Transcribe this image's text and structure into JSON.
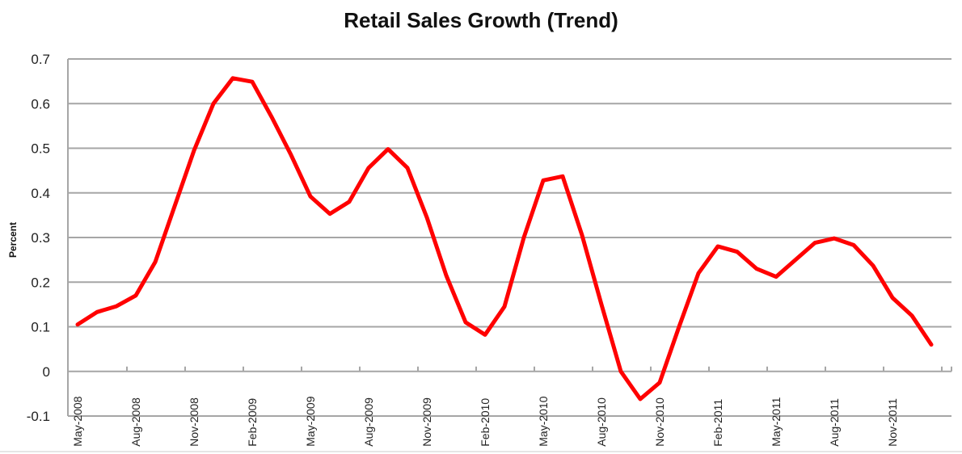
{
  "chart_data": {
    "type": "line",
    "title": "Retail Sales Growth (Trend)",
    "xlabel": "",
    "ylabel": "Percent",
    "ylim": [
      -0.1,
      0.7
    ],
    "yticks": [
      "0.7",
      "0.6",
      "0.5",
      "0.4",
      "0.3",
      "0.2",
      "0.1",
      "0",
      "-0.1"
    ],
    "grid": true,
    "legend": null,
    "xtick_labels": [
      "May-2008",
      "Aug-2008",
      "Nov-2008",
      "Feb-2009",
      "May-2009",
      "Aug-2009",
      "Nov-2009",
      "Feb-2010",
      "May-2010",
      "Aug-2010",
      "Nov-2010",
      "Feb-2011",
      "May-2011",
      "Aug-2011",
      "Nov-2011"
    ],
    "x": [
      "May-2008",
      "Jun-2008",
      "Jul-2008",
      "Aug-2008",
      "Sep-2008",
      "Oct-2008",
      "Nov-2008",
      "Dec-2008",
      "Jan-2009",
      "Feb-2009",
      "Mar-2009",
      "Apr-2009",
      "May-2009",
      "Jun-2009",
      "Jul-2009",
      "Aug-2009",
      "Sep-2009",
      "Oct-2009",
      "Nov-2009",
      "Dec-2009",
      "Jan-2010",
      "Feb-2010",
      "Mar-2010",
      "Apr-2010",
      "May-2010",
      "Jun-2010",
      "Jul-2010",
      "Aug-2010",
      "Sep-2010",
      "Oct-2010",
      "Nov-2010",
      "Dec-2010",
      "Jan-2011",
      "Feb-2011",
      "Mar-2011",
      "Apr-2011",
      "May-2011",
      "Jun-2011",
      "Jul-2011",
      "Aug-2011",
      "Sep-2011",
      "Oct-2011",
      "Nov-2011",
      "Dec-2011",
      "Jan-2012"
    ],
    "series": [
      {
        "name": "Retail Sales Growth (Trend)",
        "color": "#ff0000",
        "values": [
          0.105,
          0.133,
          0.146,
          0.17,
          0.245,
          0.37,
          0.495,
          0.6,
          0.657,
          0.649,
          0.57,
          0.485,
          0.392,
          0.353,
          0.38,
          0.456,
          0.498,
          0.456,
          0.345,
          0.215,
          0.11,
          0.082,
          0.145,
          0.3,
          0.428,
          0.437,
          0.305,
          0.15,
          0.0,
          -0.062,
          -0.025,
          0.1,
          0.22,
          0.28,
          0.268,
          0.23,
          0.212,
          0.25,
          0.288,
          0.298,
          0.283,
          0.237,
          0.165,
          0.125,
          0.06
        ]
      }
    ]
  },
  "colors": {
    "line": "#ff0000",
    "grid": "#a6a6a6",
    "text": "#222222"
  }
}
